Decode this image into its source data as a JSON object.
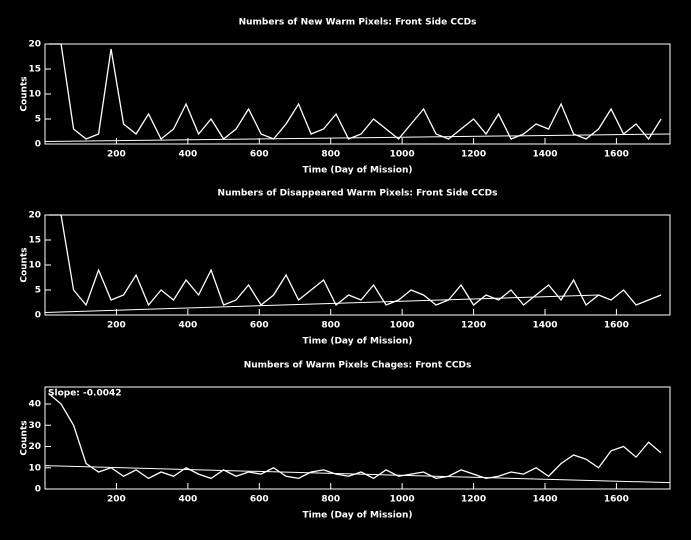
{
  "chart_data": [
    {
      "type": "line",
      "title": "Numbers of New Warm Pixels: Front Side CCDs",
      "xlabel": "Time (Day of Mission)",
      "ylabel": "Counts",
      "x": [
        10,
        45,
        80,
        115,
        150,
        185,
        220,
        255,
        290,
        325,
        360,
        395,
        430,
        465,
        500,
        535,
        570,
        605,
        640,
        675,
        710,
        745,
        780,
        815,
        850,
        885,
        920,
        955,
        990,
        1025,
        1060,
        1095,
        1130,
        1165,
        1200,
        1235,
        1270,
        1305,
        1340,
        1375,
        1410,
        1445,
        1480,
        1515,
        1550,
        1585,
        1620,
        1655,
        1690,
        1725
      ],
      "series": [
        {
          "color": "#ffffff",
          "values": [
            20,
            20,
            3,
            1,
            2,
            19,
            4,
            2,
            6,
            1,
            3,
            8,
            2,
            5,
            1,
            3,
            7,
            2,
            1,
            4,
            8,
            2,
            3,
            6,
            1,
            2,
            5,
            3,
            1,
            4,
            7,
            2,
            1,
            3,
            5,
            2,
            6,
            1,
            2,
            4,
            3,
            8,
            2,
            1,
            3,
            7,
            2,
            4,
            1,
            5
          ]
        }
      ],
      "fit_x": [
        0,
        1750
      ],
      "fit_values": [
        0.5,
        2
      ],
      "xlim": [
        0,
        1750
      ],
      "xticks": [
        200,
        400,
        600,
        800,
        1000,
        1200,
        1400,
        1600
      ],
      "ylim": [
        0,
        20
      ],
      "yticks": [
        0,
        5,
        10,
        15,
        20
      ]
    },
    {
      "type": "line",
      "title": "Numbers of Disappeared Warm Pixels: Front Side CCDs",
      "xlabel": "Time (Day of Mission)",
      "ylabel": "Counts",
      "x": [
        10,
        45,
        80,
        115,
        150,
        185,
        220,
        255,
        290,
        325,
        360,
        395,
        430,
        465,
        500,
        535,
        570,
        605,
        640,
        675,
        710,
        745,
        780,
        815,
        850,
        885,
        920,
        955,
        990,
        1025,
        1060,
        1095,
        1130,
        1165,
        1200,
        1235,
        1270,
        1305,
        1340,
        1375,
        1410,
        1445,
        1480,
        1515,
        1550,
        1585,
        1620,
        1655,
        1690,
        1725
      ],
      "series": [
        {
          "color": "#ffffff",
          "values": [
            20,
            20,
            5,
            2,
            9,
            3,
            4,
            8,
            2,
            5,
            3,
            7,
            4,
            9,
            2,
            3,
            6,
            2,
            4,
            8,
            3,
            5,
            7,
            2,
            4,
            3,
            6,
            2,
            3,
            5,
            4,
            2,
            3,
            6,
            2,
            4,
            3,
            5,
            2,
            4,
            6,
            3,
            7,
            2,
            4,
            3,
            5,
            2,
            3,
            4
          ]
        }
      ],
      "fit_x": [
        0,
        1550
      ],
      "fit_values": [
        0.5,
        4
      ],
      "xlim": [
        0,
        1750
      ],
      "xticks": [
        200,
        400,
        600,
        800,
        1000,
        1200,
        1400,
        1600
      ],
      "ylim": [
        0,
        20
      ],
      "yticks": [
        0,
        5,
        10,
        15,
        20
      ]
    },
    {
      "type": "line",
      "title": "Numbers of Warm Pixels Chages: Front CCDs",
      "xlabel": "Time (Day of Mission)",
      "ylabel": "Counts",
      "annotation": "Slope: -0.0042",
      "x": [
        10,
        45,
        80,
        115,
        150,
        185,
        220,
        255,
        290,
        325,
        360,
        395,
        430,
        465,
        500,
        535,
        570,
        605,
        640,
        675,
        710,
        745,
        780,
        815,
        850,
        885,
        920,
        955,
        990,
        1025,
        1060,
        1095,
        1130,
        1165,
        1200,
        1235,
        1270,
        1305,
        1340,
        1375,
        1410,
        1445,
        1480,
        1515,
        1550,
        1585,
        1620,
        1655,
        1690,
        1725
      ],
      "series": [
        {
          "color": "#ffffff",
          "values": [
            45,
            40,
            30,
            12,
            8,
            10,
            6,
            9,
            5,
            8,
            6,
            10,
            7,
            5,
            9,
            6,
            8,
            7,
            10,
            6,
            5,
            8,
            9,
            7,
            6,
            8,
            5,
            9,
            6,
            7,
            8,
            5,
            6,
            9,
            7,
            5,
            6,
            8,
            7,
            10,
            6,
            12,
            16,
            14,
            10,
            18,
            20,
            15,
            22,
            17
          ]
        }
      ],
      "fit_x": [
        0,
        1750
      ],
      "fit_values": [
        11,
        3
      ],
      "xlim": [
        0,
        1750
      ],
      "xticks": [
        200,
        400,
        600,
        800,
        1000,
        1200,
        1400,
        1600
      ],
      "ylim": [
        0,
        48
      ],
      "yticks": [
        0,
        10,
        20,
        30,
        40
      ]
    }
  ]
}
